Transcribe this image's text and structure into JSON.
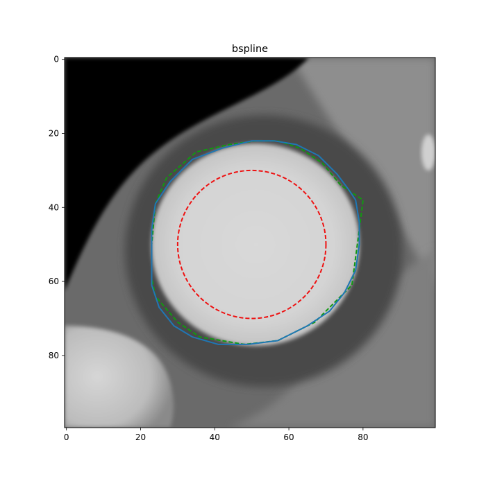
{
  "figure": {
    "title": "bspline"
  },
  "image": {
    "type": "image",
    "content": "grayscale CT slice with bright circular structure surrounded by a darker ring, black region in upper-left, bright region lower-left",
    "colormap": "gray",
    "xlim": [
      -0.5,
      99.5
    ],
    "ylim": [
      99.5,
      -0.5
    ],
    "x_ticks": [
      "0",
      "20",
      "40",
      "60",
      "80"
    ],
    "y_ticks": [
      "0",
      "20",
      "40",
      "60",
      "80"
    ],
    "x_tick_values": [
      0,
      20,
      40,
      60,
      80
    ],
    "y_tick_values": [
      0,
      20,
      40,
      60,
      80
    ]
  },
  "overlays": {
    "initial_circle": {
      "name": "",
      "style": "dashed",
      "color": "#ee1111",
      "center": [
        50,
        50
      ],
      "radius": 20
    },
    "polygon": {
      "name": "",
      "style": "dashed",
      "color": "#119911",
      "points": [
        [
          57,
          22
        ],
        [
          63,
          24
        ],
        [
          69,
          28
        ],
        [
          74,
          34
        ],
        [
          80,
          38
        ],
        [
          79,
          46
        ],
        [
          77,
          61
        ],
        [
          73,
          65
        ],
        [
          70,
          68
        ],
        [
          67,
          71
        ],
        [
          57,
          76
        ],
        [
          48,
          77
        ],
        [
          36,
          75
        ],
        [
          30,
          71
        ],
        [
          24,
          64
        ],
        [
          23,
          59
        ],
        [
          23,
          50
        ],
        [
          24,
          39
        ],
        [
          27,
          32
        ],
        [
          35,
          25
        ],
        [
          44,
          23
        ],
        [
          51,
          22
        ],
        [
          57,
          22
        ]
      ]
    },
    "bspline": {
      "name": "",
      "style": "solid",
      "color": "#1f77b4",
      "points": [
        [
          56,
          22
        ],
        [
          62,
          23
        ],
        [
          68,
          26
        ],
        [
          73,
          31
        ],
        [
          76,
          35
        ],
        [
          78,
          38
        ],
        [
          79,
          44
        ],
        [
          79,
          50
        ],
        [
          78,
          57
        ],
        [
          75,
          63
        ],
        [
          71,
          68
        ],
        [
          65,
          72
        ],
        [
          57,
          76
        ],
        [
          49,
          77
        ],
        [
          41,
          77
        ],
        [
          34,
          75
        ],
        [
          29,
          72
        ],
        [
          25,
          67
        ],
        [
          23,
          61
        ],
        [
          23,
          55
        ],
        [
          23,
          46
        ],
        [
          24,
          39
        ],
        [
          28,
          33
        ],
        [
          34,
          27
        ],
        [
          42,
          24
        ],
        [
          50,
          22
        ],
        [
          56,
          22
        ]
      ]
    }
  }
}
